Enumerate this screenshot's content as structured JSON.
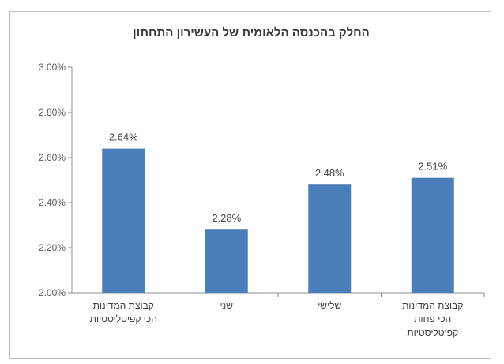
{
  "chart_data": {
    "type": "bar",
    "title": "החלק בהכנסה הלאומית של העשירון התחתון",
    "categories": [
      [
        "קבוצת המדינות",
        "הכי קפיטליסטיות"
      ],
      [
        "שני"
      ],
      [
        "שלישי"
      ],
      [
        "קבוצת המדינות",
        "הכי פחות",
        "קפיטליסטיות"
      ]
    ],
    "values": [
      2.64,
      2.28,
      2.48,
      2.51
    ],
    "data_labels": [
      "2.64%",
      "2.28%",
      "2.48%",
      "2.51%"
    ],
    "yticks": [
      "2.00%",
      "2.20%",
      "2.40%",
      "2.60%",
      "2.80%",
      "3.00%"
    ],
    "ylim": [
      2.0,
      3.0
    ],
    "xlabel": "",
    "ylabel": "",
    "grid": false,
    "bar_color": "#4a7ebb"
  }
}
